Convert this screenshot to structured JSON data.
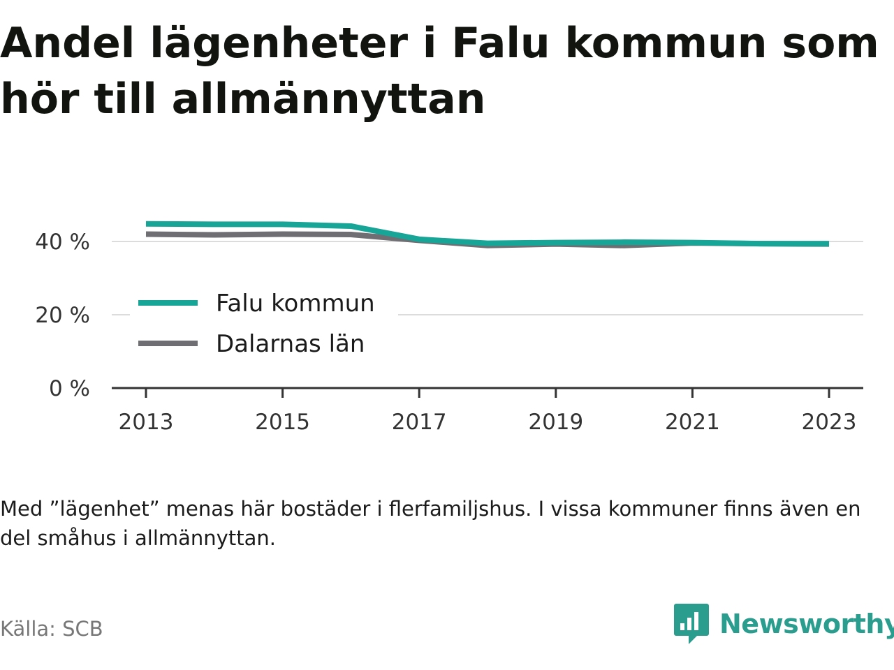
{
  "title": "Andel lägenheter i Falu kommun som hör till allmännyttan",
  "note": "Med ”lägenhet” menas här bostäder i flerfamiljshus. I vissa kommuner finns även en del småhus i allmännyttan.",
  "source": "Källa: SCB",
  "logo": {
    "text": "Newsworthy",
    "icon": "bar-chart-speech-bubble-icon",
    "color": "#2a9d8f"
  },
  "chart_data": {
    "type": "line",
    "x": [
      2013,
      2014,
      2015,
      2016,
      2017,
      2018,
      2019,
      2020,
      2021,
      2022,
      2023
    ],
    "x_ticks": [
      2013,
      2015,
      2017,
      2019,
      2021,
      2023
    ],
    "y_ticks": [
      0,
      20,
      40
    ],
    "y_tick_suffix": " %",
    "ylim": [
      0,
      45
    ],
    "grid": true,
    "legend_position": "inside-left",
    "series": [
      {
        "name": "Falu kommun",
        "color": "#17a597",
        "values": [
          44.8,
          44.7,
          44.7,
          44.2,
          40.6,
          39.5,
          39.7,
          39.8,
          39.7,
          39.4,
          39.4
        ]
      },
      {
        "name": "Dalarnas län",
        "color": "#6e6e73",
        "values": [
          42.0,
          41.8,
          42.0,
          41.9,
          40.3,
          38.9,
          39.3,
          38.9,
          39.6,
          39.4,
          39.3
        ]
      }
    ]
  }
}
